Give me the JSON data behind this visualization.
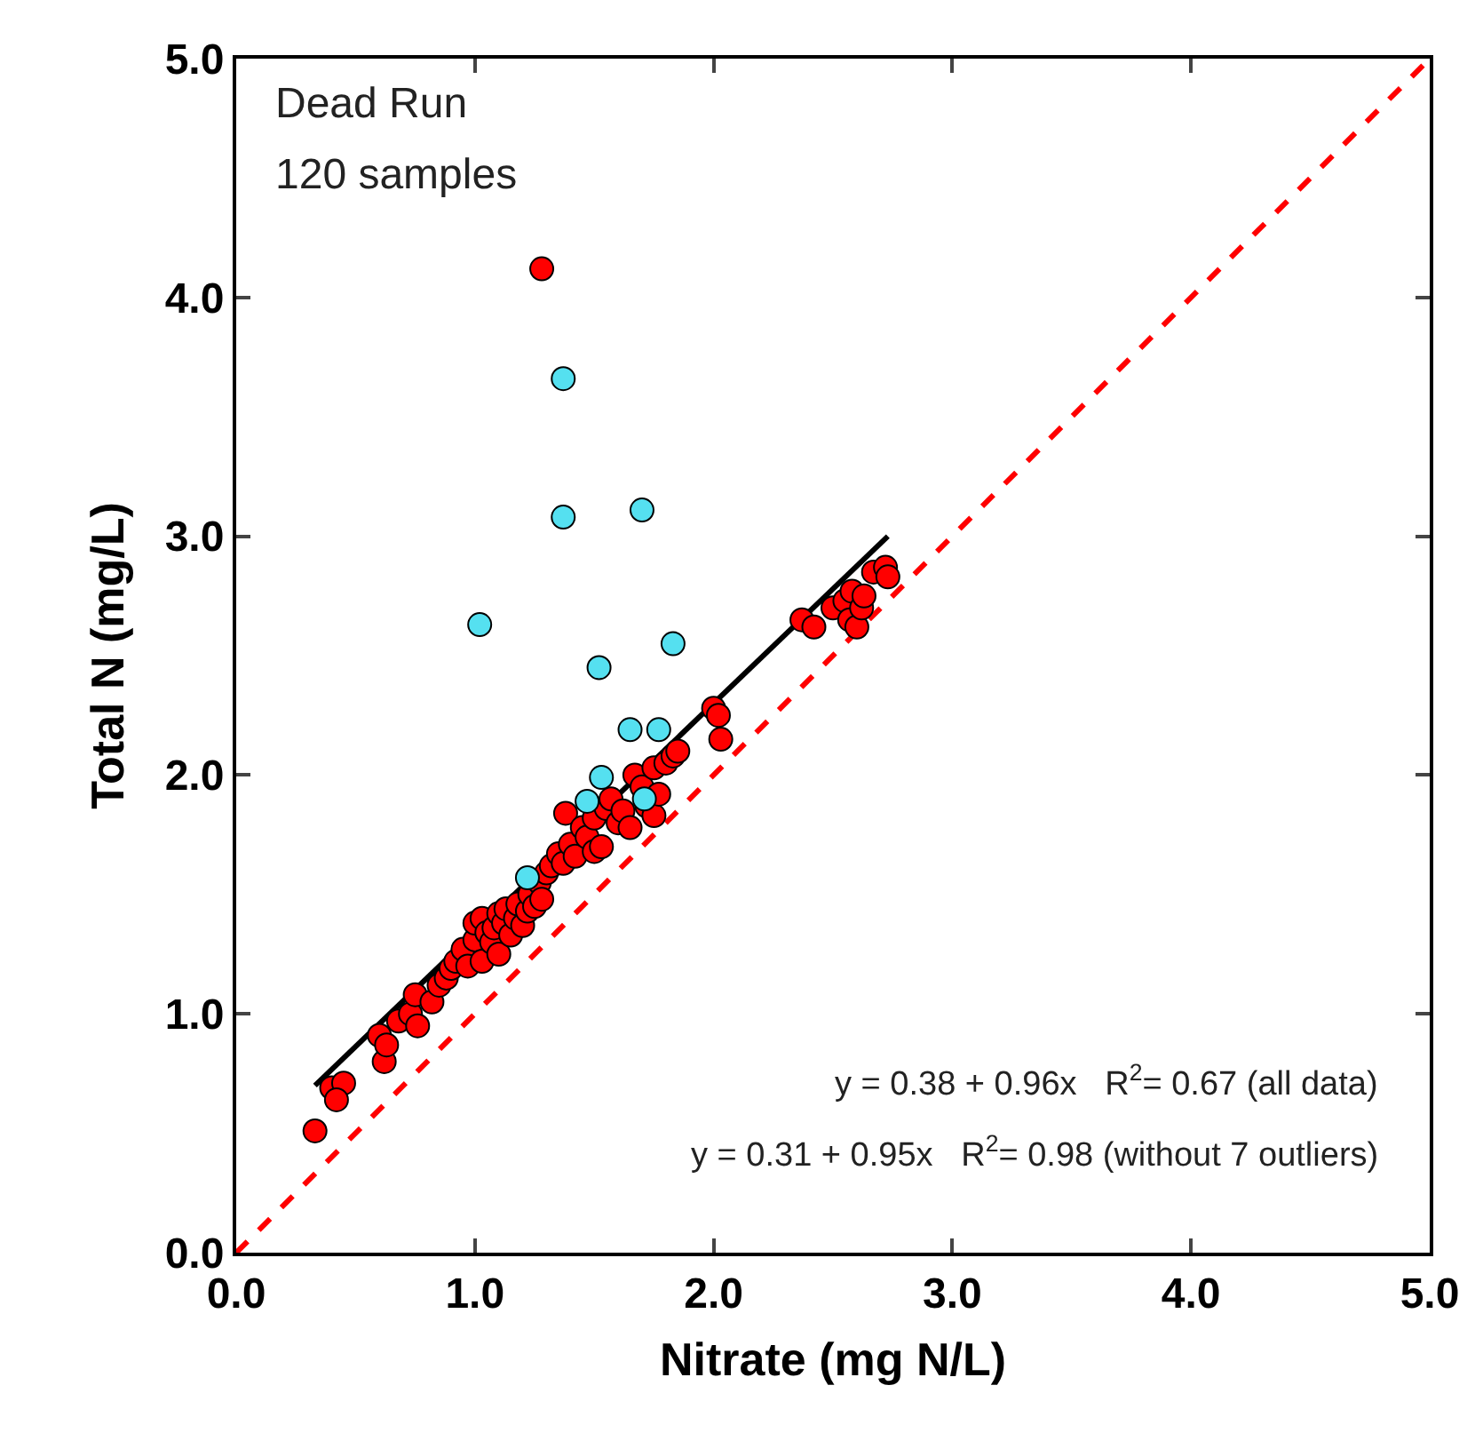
{
  "chart_data": {
    "type": "scatter",
    "xlabel": "Nitrate (mg N/L)",
    "ylabel": "Total N (mg/L)",
    "xlim": [
      0,
      5
    ],
    "ylim": [
      0,
      5
    ],
    "xticks": [
      {
        "value": 0,
        "label": "0.0"
      },
      {
        "value": 1,
        "label": "1.0"
      },
      {
        "value": 2,
        "label": "2.0"
      },
      {
        "value": 3,
        "label": "3.0"
      },
      {
        "value": 4,
        "label": "4.0"
      },
      {
        "value": 5,
        "label": "5.0"
      }
    ],
    "yticks": [
      {
        "value": 0,
        "label": "0.0"
      },
      {
        "value": 1,
        "label": "1.0"
      },
      {
        "value": 2,
        "label": "2.0"
      },
      {
        "value": 3,
        "label": "3.0"
      },
      {
        "value": 4,
        "label": "4.0"
      },
      {
        "value": 5,
        "label": "5.0"
      }
    ],
    "marker": "circle",
    "series": [
      {
        "type": "line",
        "color": "#ff0000",
        "line_style": "dashed",
        "marker": "none",
        "x": [
          0,
          5
        ],
        "values": [
          0,
          5
        ]
      },
      {
        "type": "line",
        "color": "#000000",
        "line_style": "solid",
        "marker": "none",
        "x": [
          0.33,
          2.73
        ],
        "values": [
          0.7,
          3.0
        ]
      },
      {
        "color": "#ff0000",
        "x": [
          0.33,
          0.4,
          0.45,
          0.42,
          0.6,
          0.62,
          0.63,
          0.68,
          0.73,
          0.75,
          0.76,
          0.82,
          0.85,
          0.88,
          0.9,
          0.92,
          0.95,
          0.97,
          1.0,
          1.0,
          1.03,
          1.03,
          1.05,
          1.07,
          1.08,
          1.1,
          1.1,
          1.12,
          1.13,
          1.15,
          1.17,
          1.18,
          1.2,
          1.22,
          1.23,
          1.25,
          1.27,
          1.28,
          1.3,
          1.32,
          1.35,
          1.37,
          1.38,
          1.4,
          1.42,
          1.45,
          1.47,
          1.5,
          1.5,
          1.53,
          1.55,
          1.57,
          1.6,
          1.62,
          1.65,
          1.67,
          1.7,
          1.72,
          1.75,
          1.75,
          1.77,
          1.8,
          1.83,
          1.85,
          2.0,
          2.02,
          2.03,
          2.37,
          2.42,
          2.5,
          2.55,
          2.57,
          2.58,
          2.6,
          2.62,
          2.63,
          2.67,
          2.72,
          2.73,
          1.28
        ],
        "values": [
          0.51,
          0.69,
          0.71,
          0.64,
          0.91,
          0.8,
          0.87,
          0.97,
          1.0,
          1.08,
          0.95,
          1.05,
          1.12,
          1.15,
          1.19,
          1.22,
          1.27,
          1.2,
          1.31,
          1.38,
          1.4,
          1.22,
          1.34,
          1.3,
          1.36,
          1.42,
          1.25,
          1.38,
          1.44,
          1.33,
          1.4,
          1.46,
          1.37,
          1.43,
          1.5,
          1.45,
          1.55,
          1.48,
          1.59,
          1.62,
          1.67,
          1.63,
          1.84,
          1.71,
          1.66,
          1.78,
          1.74,
          1.82,
          1.68,
          1.7,
          1.86,
          1.9,
          1.8,
          1.85,
          1.78,
          2.0,
          1.95,
          1.87,
          1.83,
          2.03,
          1.92,
          2.05,
          2.08,
          2.1,
          2.28,
          2.25,
          2.15,
          2.65,
          2.62,
          2.7,
          2.73,
          2.65,
          2.77,
          2.62,
          2.7,
          2.75,
          2.85,
          2.87,
          2.83,
          4.12
        ]
      },
      {
        "color": "#55e0f0",
        "x": [
          1.02,
          1.37,
          1.37,
          1.7,
          1.52,
          1.83,
          1.65,
          1.77,
          1.53,
          1.47,
          1.71,
          1.22
        ],
        "values": [
          2.63,
          3.66,
          3.08,
          3.11,
          2.45,
          2.55,
          2.19,
          2.19,
          1.99,
          1.89,
          1.9,
          1.57
        ]
      }
    ],
    "annotations": [
      "Dead Run",
      "120 samples",
      "y = 0.38 + 0.96x   R$^{2}$= 0.67 (all data)",
      "y = 0.31 + 0.95x   R$^{2}$= 0.98 (without 7 outliers)"
    ]
  }
}
